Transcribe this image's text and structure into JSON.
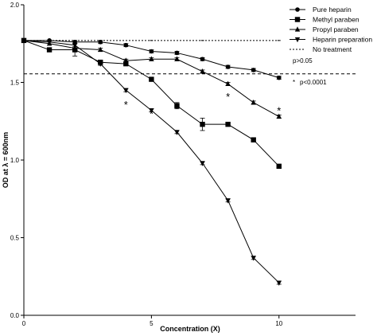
{
  "chart_data": {
    "type": "line",
    "xlabel": "Concentration  (X)",
    "ylabel": "OD at λ = 600nm",
    "xlim": [
      0,
      13
    ],
    "ylim": [
      0,
      2.0
    ],
    "x_ticks": [
      0,
      5,
      10
    ],
    "y_ticks": [
      "0.0",
      "0.5",
      "1.0",
      "1.5",
      "2.0"
    ],
    "grid": false,
    "legend_position": "top-right",
    "x": [
      0,
      1,
      2,
      3,
      4,
      5,
      6,
      7,
      8,
      9,
      10
    ],
    "series": [
      {
        "name": "Pure heparin",
        "marker": "circle",
        "values": [
          1.77,
          1.77,
          1.76,
          1.76,
          1.74,
          1.7,
          1.69,
          1.65,
          1.6,
          1.58,
          1.53
        ],
        "errors": [
          0,
          0,
          0.01,
          0.01,
          0.01,
          0.01,
          0.01,
          0.01,
          0.01,
          0.01,
          0.01
        ]
      },
      {
        "name": "Methyl paraben",
        "marker": "square",
        "values": [
          1.77,
          1.71,
          1.71,
          1.63,
          1.62,
          1.52,
          1.35,
          1.23,
          1.23,
          1.13,
          0.96
        ],
        "errors": [
          0,
          0,
          0.01,
          0.01,
          0.01,
          0.01,
          0.02,
          0.04,
          0.01,
          0.01,
          0.01
        ]
      },
      {
        "name": "Propyl paraben",
        "marker": "triangle-up",
        "values": [
          1.77,
          1.75,
          1.72,
          1.71,
          1.64,
          1.65,
          1.65,
          1.57,
          1.49,
          1.37,
          1.28
        ],
        "errors": [
          0,
          0,
          0.05,
          0.01,
          0.01,
          0.01,
          0.01,
          0.01,
          0.01,
          0.01,
          0.01
        ]
      },
      {
        "name": "Heparin preparation",
        "marker": "triangle-down",
        "values": [
          1.77,
          1.76,
          1.74,
          1.62,
          1.45,
          1.32,
          1.18,
          0.98,
          0.74,
          0.37,
          0.21
        ],
        "errors": [
          0,
          0,
          0.01,
          0.01,
          0.01,
          0.01,
          0.01,
          0.01,
          0.01,
          0.01,
          0.01
        ]
      },
      {
        "name": "No treatment",
        "style": "dotted",
        "constant": 1.77
      }
    ],
    "reference_line": {
      "y": 1.555,
      "style": "dashed",
      "label": "p>0.05"
    },
    "significance": {
      "marker": "*",
      "label": "p<0.0001",
      "points": [
        {
          "x": 4,
          "y": 1.36
        },
        {
          "x": 5,
          "y": 1.3
        },
        {
          "x": 8,
          "y": 1.41
        },
        {
          "x": 10,
          "y": 1.32
        }
      ]
    },
    "colors": {
      "line": "#000000",
      "background": "#ffffff"
    }
  }
}
